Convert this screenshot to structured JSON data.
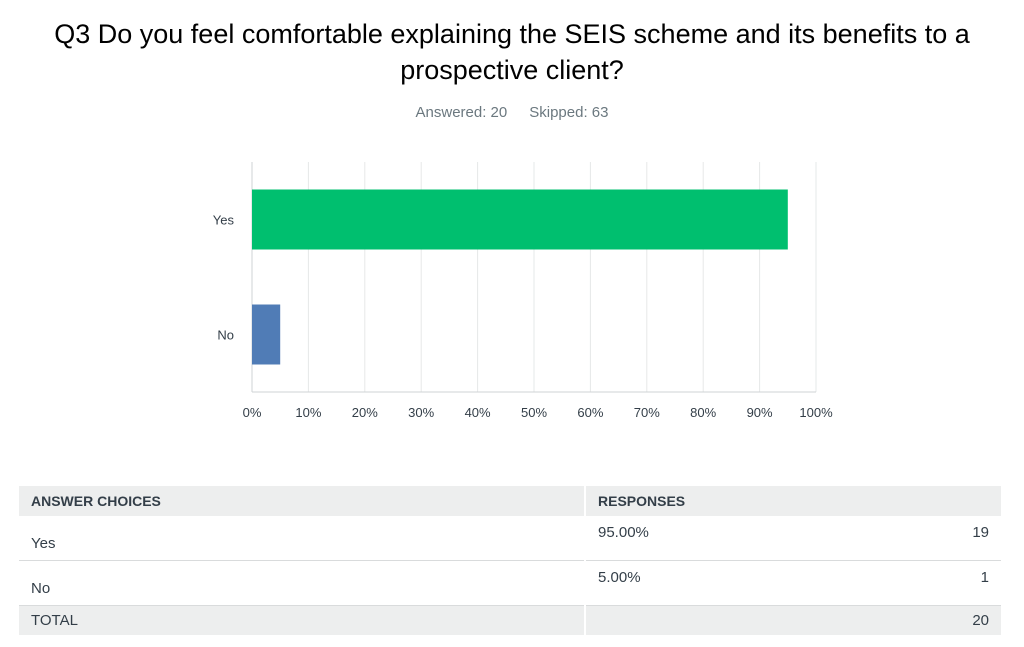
{
  "question": {
    "title": "Q3 Do you feel comfortable explaining the SEIS scheme and its benefits to a prospective client?",
    "answered": "Answered: 20",
    "skipped": "Skipped: 63"
  },
  "chart_data": {
    "type": "bar",
    "orientation": "horizontal",
    "categories": [
      "Yes",
      "No"
    ],
    "values": [
      95,
      5
    ],
    "colors": [
      "#00bf6f",
      "#507cb6"
    ],
    "xlim": [
      0,
      100
    ],
    "xticks": [
      "0%",
      "10%",
      "20%",
      "30%",
      "40%",
      "50%",
      "60%",
      "70%",
      "80%",
      "90%",
      "100%"
    ],
    "grid": true,
    "legend": "none"
  },
  "table": {
    "headers": [
      "ANSWER CHOICES",
      "RESPONSES"
    ],
    "rows": [
      {
        "choice": "Yes",
        "percent": "95.00%",
        "count": "19"
      },
      {
        "choice": "No",
        "percent": "5.00%",
        "count": "1"
      }
    ],
    "total_label": "TOTAL",
    "total_count": "20"
  }
}
